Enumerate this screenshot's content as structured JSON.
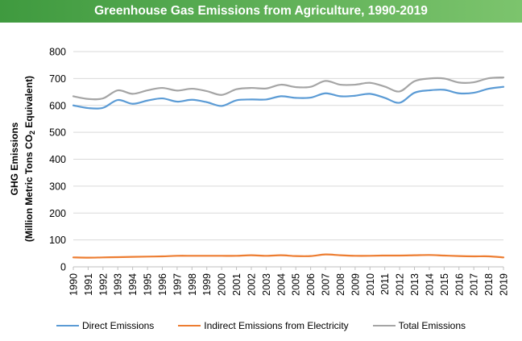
{
  "header": {
    "title": "Greenhouse Gas Emissions from Agriculture, 1990-2019",
    "bar_color_start": "#3f9a3f",
    "bar_color_end": "#7cc46d"
  },
  "chart_data": {
    "type": "line",
    "title": "Greenhouse Gas Emissions from Agriculture, 1990-2019",
    "xlabel": "",
    "ylabel_line1": "GHG Emissions",
    "ylabel_line2_prefix": "(Million Metric Tons CO",
    "ylabel_line2_sub": "2",
    "ylabel_line2_suffix": " Equivalent)",
    "ylim": [
      0,
      800
    ],
    "yticks": [
      "0",
      "100",
      "200",
      "300",
      "400",
      "500",
      "600",
      "700",
      "800"
    ],
    "grid": true,
    "legend_position": "bottom",
    "categories": [
      "1990",
      "1991",
      "1992",
      "1993",
      "1994",
      "1995",
      "1996",
      "1997",
      "1998",
      "1999",
      "2000",
      "2001",
      "2002",
      "2003",
      "2004",
      "2005",
      "2006",
      "2007",
      "2008",
      "2009",
      "2010",
      "2011",
      "2012",
      "2013",
      "2014",
      "2015",
      "2016",
      "2017",
      "2018",
      "2019"
    ],
    "series": [
      {
        "name": "Direct Emissions",
        "color": "#5b9bd5",
        "values": [
          600,
          590,
          591,
          620,
          606,
          618,
          626,
          614,
          621,
          612,
          598,
          619,
          622,
          622,
          634,
          628,
          629,
          645,
          634,
          636,
          643,
          628,
          610,
          647,
          656,
          658,
          645,
          647,
          662,
          669
        ]
      },
      {
        "name": "Indirect Emissions from Electricity",
        "color": "#ed7d31",
        "values": [
          35,
          34,
          35,
          36,
          37,
          38,
          39,
          41,
          41,
          41,
          41,
          41,
          43,
          41,
          43,
          40,
          40,
          46,
          43,
          41,
          41,
          42,
          42,
          43,
          44,
          42,
          40,
          39,
          39,
          35
        ]
      },
      {
        "name": "Total Emissions",
        "color": "#a5a5a5",
        "values": [
          634,
          624,
          626,
          656,
          643,
          656,
          665,
          655,
          662,
          653,
          639,
          660,
          665,
          663,
          677,
          668,
          669,
          691,
          677,
          677,
          684,
          670,
          652,
          690,
          700,
          700,
          685,
          686,
          701,
          704
        ]
      }
    ]
  }
}
